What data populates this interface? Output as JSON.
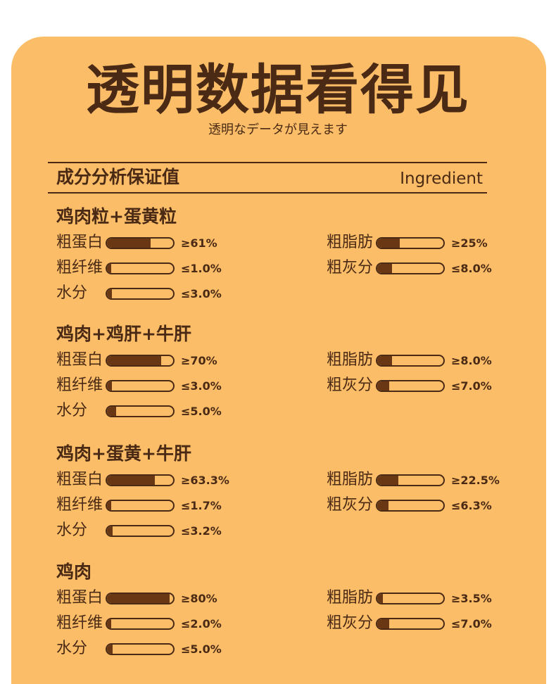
{
  "header": {
    "title": "透明数据看得见",
    "subtitle": "透明なデータが見えます"
  },
  "table_heading": {
    "label": "成分分析保证值",
    "label_en": "Ingredient"
  },
  "colors": {
    "background": "#fbbd68",
    "text": "#4a2a14",
    "bar_fill": "#6a3714"
  },
  "sections": [
    {
      "title": "鸡肉粒+蛋黄粒",
      "items": [
        {
          "label": "粗蛋白",
          "value": "≥61%",
          "fill": 0.66
        },
        {
          "label": "粗脂肪",
          "value": "≥25%",
          "fill": 0.34
        },
        {
          "label": "粗纤维",
          "value": "≤1.0%",
          "fill": 0.04
        },
        {
          "label": "粗灰分",
          "value": "≤8.0%",
          "fill": 0.22
        },
        {
          "label": "水分",
          "value": "≤3.0%",
          "fill": 0.07
        }
      ]
    },
    {
      "title": "鸡肉+鸡肝+牛肝",
      "items": [
        {
          "label": "粗蛋白",
          "value": "≥70%",
          "fill": 0.82
        },
        {
          "label": "粗脂肪",
          "value": "≥8.0%",
          "fill": 0.22
        },
        {
          "label": "粗纤维",
          "value": "≤3.0%",
          "fill": 0.07
        },
        {
          "label": "粗灰分",
          "value": "≤7.0%",
          "fill": 0.18
        },
        {
          "label": "水分",
          "value": "≤5.0%",
          "fill": 0.14
        }
      ]
    },
    {
      "title": "鸡肉+蛋黄+牛肝",
      "items": [
        {
          "label": "粗蛋白",
          "value": "≥63.3%",
          "fill": 0.72
        },
        {
          "label": "粗脂肪",
          "value": "≥22.5%",
          "fill": 0.32
        },
        {
          "label": "粗纤维",
          "value": "≤1.7%",
          "fill": 0.05
        },
        {
          "label": "粗灰分",
          "value": "≤6.3%",
          "fill": 0.17
        },
        {
          "label": "水分",
          "value": "≤3.2%",
          "fill": 0.08
        }
      ]
    },
    {
      "title": "鸡肉",
      "items": [
        {
          "label": "粗蛋白",
          "value": "≥80%",
          "fill": 0.95
        },
        {
          "label": "粗脂肪",
          "value": "≥3.5%",
          "fill": 0.08
        },
        {
          "label": "粗纤维",
          "value": "≤2.0%",
          "fill": 0.05
        },
        {
          "label": "粗灰分",
          "value": "≤7.0%",
          "fill": 0.18
        },
        {
          "label": "水分",
          "value": "≤5.0%",
          "fill": 0.08
        }
      ]
    }
  ]
}
